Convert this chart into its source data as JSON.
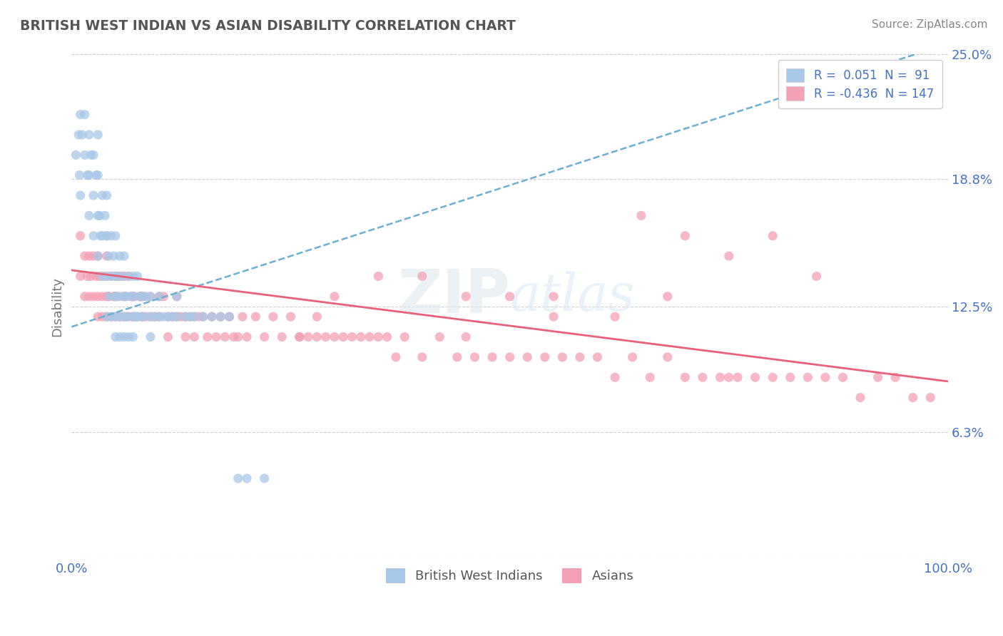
{
  "title": "BRITISH WEST INDIAN VS ASIAN DISABILITY CORRELATION CHART",
  "source": "Source: ZipAtlas.com",
  "ylabel": "Disability",
  "xlim": [
    0.0,
    1.0
  ],
  "ylim": [
    0.0,
    0.25
  ],
  "yticks": [
    0.0,
    0.063,
    0.125,
    0.188,
    0.25
  ],
  "ytick_labels": [
    "",
    "6.3%",
    "12.5%",
    "18.8%",
    "25.0%"
  ],
  "xtick_labels": [
    "0.0%",
    "100.0%"
  ],
  "color_blue": "#a8c8e8",
  "color_pink": "#f4a0b5",
  "line_blue": "#6aafd4",
  "line_pink": "#e8607a",
  "title_color": "#555555",
  "axis_color": "#4472c4",
  "grid_color": "#d0d0d0",
  "bwi_line_x0": 0.0,
  "bwi_line_y0": 0.115,
  "bwi_line_x1": 1.0,
  "bwi_line_y1": 0.255,
  "asian_line_x0": 0.0,
  "asian_line_y0": 0.143,
  "asian_line_x1": 1.0,
  "asian_line_y1": 0.088,
  "bwi_x": [
    0.005,
    0.008,
    0.009,
    0.01,
    0.01,
    0.012,
    0.015,
    0.015,
    0.018,
    0.02,
    0.02,
    0.02,
    0.022,
    0.025,
    0.025,
    0.025,
    0.028,
    0.03,
    0.03,
    0.03,
    0.03,
    0.032,
    0.033,
    0.035,
    0.035,
    0.035,
    0.038,
    0.04,
    0.04,
    0.04,
    0.04,
    0.04,
    0.042,
    0.043,
    0.045,
    0.045,
    0.045,
    0.048,
    0.05,
    0.05,
    0.05,
    0.05,
    0.05,
    0.052,
    0.053,
    0.055,
    0.055,
    0.055,
    0.058,
    0.06,
    0.06,
    0.06,
    0.06,
    0.062,
    0.063,
    0.065,
    0.065,
    0.068,
    0.07,
    0.07,
    0.07,
    0.07,
    0.072,
    0.075,
    0.075,
    0.078,
    0.08,
    0.08,
    0.082,
    0.085,
    0.09,
    0.09,
    0.09,
    0.095,
    0.1,
    0.1,
    0.105,
    0.11,
    0.115,
    0.12,
    0.12,
    0.13,
    0.135,
    0.14,
    0.15,
    0.16,
    0.17,
    0.18,
    0.19,
    0.2,
    0.22
  ],
  "bwi_y": [
    0.2,
    0.21,
    0.19,
    0.22,
    0.18,
    0.21,
    0.2,
    0.22,
    0.19,
    0.21,
    0.19,
    0.17,
    0.2,
    0.18,
    0.2,
    0.16,
    0.19,
    0.17,
    0.19,
    0.15,
    0.21,
    0.17,
    0.16,
    0.18,
    0.16,
    0.14,
    0.17,
    0.16,
    0.14,
    0.18,
    0.12,
    0.16,
    0.15,
    0.13,
    0.16,
    0.14,
    0.12,
    0.15,
    0.14,
    0.12,
    0.16,
    0.13,
    0.11,
    0.14,
    0.13,
    0.15,
    0.12,
    0.11,
    0.14,
    0.13,
    0.12,
    0.15,
    0.11,
    0.13,
    0.12,
    0.14,
    0.11,
    0.13,
    0.12,
    0.14,
    0.11,
    0.13,
    0.12,
    0.14,
    0.12,
    0.13,
    0.12,
    0.13,
    0.12,
    0.13,
    0.12,
    0.13,
    0.11,
    0.12,
    0.12,
    0.13,
    0.12,
    0.12,
    0.12,
    0.12,
    0.13,
    0.12,
    0.12,
    0.12,
    0.12,
    0.12,
    0.12,
    0.12,
    0.04,
    0.04,
    0.04
  ],
  "asian_x": [
    0.01,
    0.01,
    0.015,
    0.015,
    0.018,
    0.02,
    0.02,
    0.022,
    0.025,
    0.025,
    0.028,
    0.03,
    0.03,
    0.03,
    0.032,
    0.035,
    0.035,
    0.038,
    0.04,
    0.04,
    0.04,
    0.042,
    0.045,
    0.045,
    0.048,
    0.05,
    0.05,
    0.05,
    0.052,
    0.055,
    0.055,
    0.058,
    0.06,
    0.06,
    0.062,
    0.065,
    0.065,
    0.068,
    0.07,
    0.07,
    0.072,
    0.075,
    0.078,
    0.08,
    0.08,
    0.082,
    0.085,
    0.09,
    0.09,
    0.095,
    0.1,
    0.1,
    0.105,
    0.11,
    0.11,
    0.115,
    0.12,
    0.12,
    0.125,
    0.13,
    0.13,
    0.135,
    0.14,
    0.14,
    0.145,
    0.15,
    0.155,
    0.16,
    0.165,
    0.17,
    0.175,
    0.18,
    0.185,
    0.19,
    0.195,
    0.2,
    0.21,
    0.22,
    0.23,
    0.24,
    0.25,
    0.26,
    0.27,
    0.28,
    0.29,
    0.3,
    0.31,
    0.32,
    0.33,
    0.34,
    0.35,
    0.36,
    0.37,
    0.38,
    0.4,
    0.42,
    0.44,
    0.45,
    0.46,
    0.48,
    0.5,
    0.52,
    0.54,
    0.56,
    0.58,
    0.6,
    0.62,
    0.64,
    0.66,
    0.68,
    0.7,
    0.72,
    0.74,
    0.75,
    0.76,
    0.78,
    0.8,
    0.82,
    0.84,
    0.86,
    0.88,
    0.9,
    0.92,
    0.94,
    0.96,
    0.98,
    0.65,
    0.7,
    0.75,
    0.8,
    0.85,
    0.45,
    0.5,
    0.55,
    0.35,
    0.4,
    0.3,
    0.28,
    0.26,
    0.55,
    0.62,
    0.68
  ],
  "asian_y": [
    0.16,
    0.14,
    0.15,
    0.13,
    0.14,
    0.15,
    0.13,
    0.14,
    0.15,
    0.13,
    0.14,
    0.15,
    0.13,
    0.12,
    0.14,
    0.13,
    0.12,
    0.14,
    0.15,
    0.13,
    0.12,
    0.13,
    0.14,
    0.12,
    0.13,
    0.14,
    0.13,
    0.12,
    0.13,
    0.14,
    0.12,
    0.13,
    0.14,
    0.12,
    0.13,
    0.14,
    0.12,
    0.13,
    0.13,
    0.12,
    0.13,
    0.12,
    0.13,
    0.13,
    0.12,
    0.13,
    0.12,
    0.13,
    0.12,
    0.12,
    0.13,
    0.12,
    0.13,
    0.12,
    0.11,
    0.12,
    0.13,
    0.12,
    0.12,
    0.12,
    0.11,
    0.12,
    0.12,
    0.11,
    0.12,
    0.12,
    0.11,
    0.12,
    0.11,
    0.12,
    0.11,
    0.12,
    0.11,
    0.11,
    0.12,
    0.11,
    0.12,
    0.11,
    0.12,
    0.11,
    0.12,
    0.11,
    0.11,
    0.11,
    0.11,
    0.11,
    0.11,
    0.11,
    0.11,
    0.11,
    0.11,
    0.11,
    0.1,
    0.11,
    0.1,
    0.11,
    0.1,
    0.11,
    0.1,
    0.1,
    0.1,
    0.1,
    0.1,
    0.1,
    0.1,
    0.1,
    0.09,
    0.1,
    0.09,
    0.1,
    0.09,
    0.09,
    0.09,
    0.09,
    0.09,
    0.09,
    0.09,
    0.09,
    0.09,
    0.09,
    0.09,
    0.08,
    0.09,
    0.09,
    0.08,
    0.08,
    0.17,
    0.16,
    0.15,
    0.16,
    0.14,
    0.13,
    0.13,
    0.12,
    0.14,
    0.14,
    0.13,
    0.12,
    0.11,
    0.13,
    0.12,
    0.13
  ]
}
